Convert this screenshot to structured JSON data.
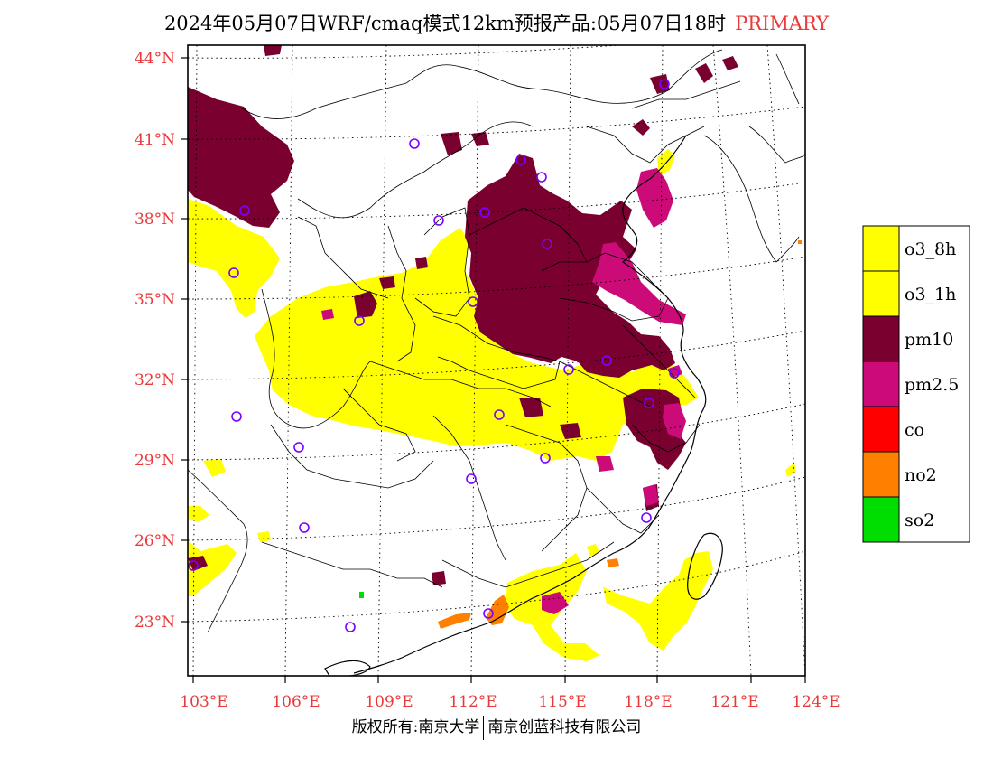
{
  "title": {
    "main": "2024年05月07日WRF/cmaq模式12km预报产品:05月07日18时",
    "tag": "PRIMARY"
  },
  "footer": {
    "left": "版权所有:南京大学",
    "right": "南京创蓝科技有限公司"
  },
  "colors": {
    "label": "#e83a3a",
    "o3_8h": "#ffff00",
    "o3_1h": "#ffff00",
    "pm10": "#7a0030",
    "pm25": "#cc0a78",
    "co": "#ff0000",
    "no2": "#ff7f00",
    "so2": "#00dd00",
    "station": "#7a00ff"
  },
  "map": {
    "lat_labels": [
      "44°N",
      "41°N",
      "38°N",
      "35°N",
      "32°N",
      "29°N",
      "26°N",
      "23°N"
    ],
    "lon_labels": [
      "103°E",
      "106°E",
      "109°E",
      "112°E",
      "115°E",
      "118°E",
      "121°E",
      "124°E"
    ],
    "legend": [
      {
        "key": "o3_8h",
        "label": "o3_8h"
      },
      {
        "key": "o3_1h",
        "label": "o3_1h"
      },
      {
        "key": "pm10",
        "label": "pm10"
      },
      {
        "key": "pm25",
        "label": "pm2.5"
      },
      {
        "key": "co",
        "label": "co"
      },
      {
        "key": "no2",
        "label": "no2"
      },
      {
        "key": "so2",
        "label": "so2"
      }
    ]
  }
}
